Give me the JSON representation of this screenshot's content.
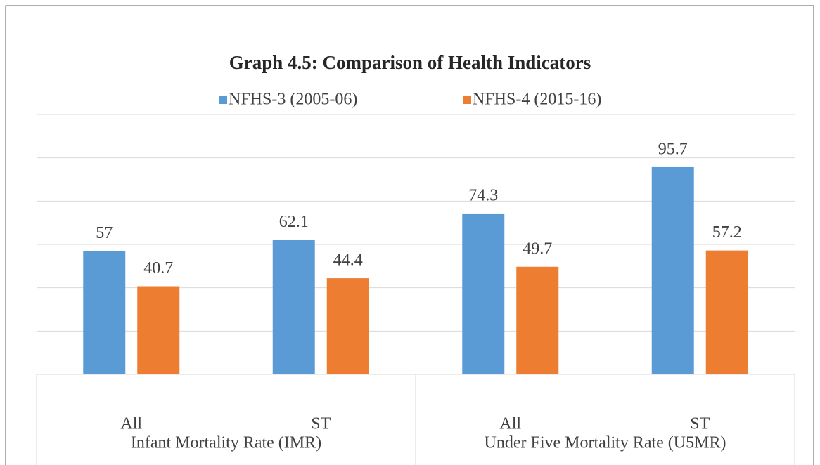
{
  "chart_data": {
    "type": "bar",
    "title": "Graph 4.5: Comparison of Health Indicators",
    "category_groups": [
      {
        "name": "Infant Mortality Rate (IMR)",
        "categories": [
          "All",
          "ST"
        ]
      },
      {
        "name": "Under Five Mortality Rate (U5MR)",
        "categories": [
          "All",
          "ST"
        ]
      }
    ],
    "series": [
      {
        "name": "NFHS-3 (2005-06)",
        "color": "#5b9bd5",
        "values": [
          57,
          62.1,
          74.3,
          95.7
        ]
      },
      {
        "name": "NFHS-4 (2015-16)",
        "color": "#ed7d31",
        "values": [
          40.7,
          44.4,
          49.7,
          57.2
        ]
      }
    ],
    "ylim": [
      0,
      120
    ],
    "yticks": [
      0,
      20,
      40,
      60,
      80,
      100,
      120
    ],
    "grid": true,
    "legend": "top"
  }
}
